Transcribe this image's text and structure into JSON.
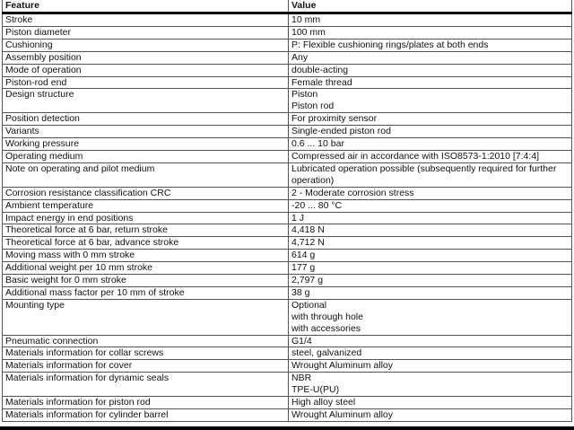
{
  "header": {
    "feature": "Feature",
    "value": "Value"
  },
  "rows": [
    {
      "feature": "Stroke",
      "value": [
        "10 mm"
      ]
    },
    {
      "feature": "Piston diameter",
      "value": [
        "100 mm"
      ]
    },
    {
      "feature": "Cushioning",
      "value": [
        "P: Flexible cushioning rings/plates at both ends"
      ]
    },
    {
      "feature": "Assembly position",
      "value": [
        "Any"
      ]
    },
    {
      "feature": "Mode of operation",
      "value": [
        "double-acting"
      ]
    },
    {
      "feature": "Piston-rod end",
      "value": [
        "Female thread"
      ]
    },
    {
      "feature": "Design structure",
      "value": [
        "Piston",
        "Piston rod"
      ]
    },
    {
      "feature": "Position detection",
      "value": [
        "For proximity sensor"
      ]
    },
    {
      "feature": "Variants",
      "value": [
        "Single-ended piston rod"
      ]
    },
    {
      "feature": "Working pressure",
      "value": [
        "0.6 ... 10 bar"
      ]
    },
    {
      "feature": "Operating medium",
      "value": [
        "Compressed air in accordance with ISO8573-1:2010 [7:4:4]"
      ]
    },
    {
      "feature": "Note on operating and pilot medium",
      "value": [
        "Lubricated operation possible (subsequently required for further",
        "operation)"
      ]
    },
    {
      "feature": "Corrosion resistance classification CRC",
      "value": [
        "2 - Moderate corrosion stress"
      ]
    },
    {
      "feature": "Ambient temperature",
      "value": [
        "-20 ... 80 °C"
      ]
    },
    {
      "feature": "Impact energy in end positions",
      "value": [
        "1 J"
      ]
    },
    {
      "feature": "Theoretical force at 6 bar, return stroke",
      "value": [
        "4,418 N"
      ]
    },
    {
      "feature": "Theoretical force at 6 bar, advance stroke",
      "value": [
        "4,712 N"
      ]
    },
    {
      "feature": "Moving mass with 0 mm stroke",
      "value": [
        "614 g"
      ]
    },
    {
      "feature": "Additional weight per 10 mm stroke",
      "value": [
        "177 g"
      ]
    },
    {
      "feature": "Basic weight for 0 mm stroke",
      "value": [
        "2,797 g"
      ]
    },
    {
      "feature": "Additional mass factor per 10 mm of stroke",
      "value": [
        "38 g"
      ]
    },
    {
      "feature": "Mounting type",
      "value": [
        "Optional",
        "with through hole",
        "with accessories"
      ]
    },
    {
      "feature": "Pneumatic connection",
      "value": [
        "G1/4"
      ]
    },
    {
      "feature": "Materials information for collar screws",
      "value": [
        "steel, galvanized"
      ]
    },
    {
      "feature": "Materials information for cover",
      "value": [
        "Wrought Aluminum alloy"
      ]
    },
    {
      "feature": "Materials information for dynamic seals",
      "value": [
        "NBR",
        "TPE-U(PU)"
      ]
    },
    {
      "feature": "Materials information for piston rod",
      "value": [
        "High alloy steel"
      ]
    },
    {
      "feature": "Materials information for cylinder barrel",
      "value": [
        "Wrought Aluminum alloy"
      ]
    }
  ]
}
